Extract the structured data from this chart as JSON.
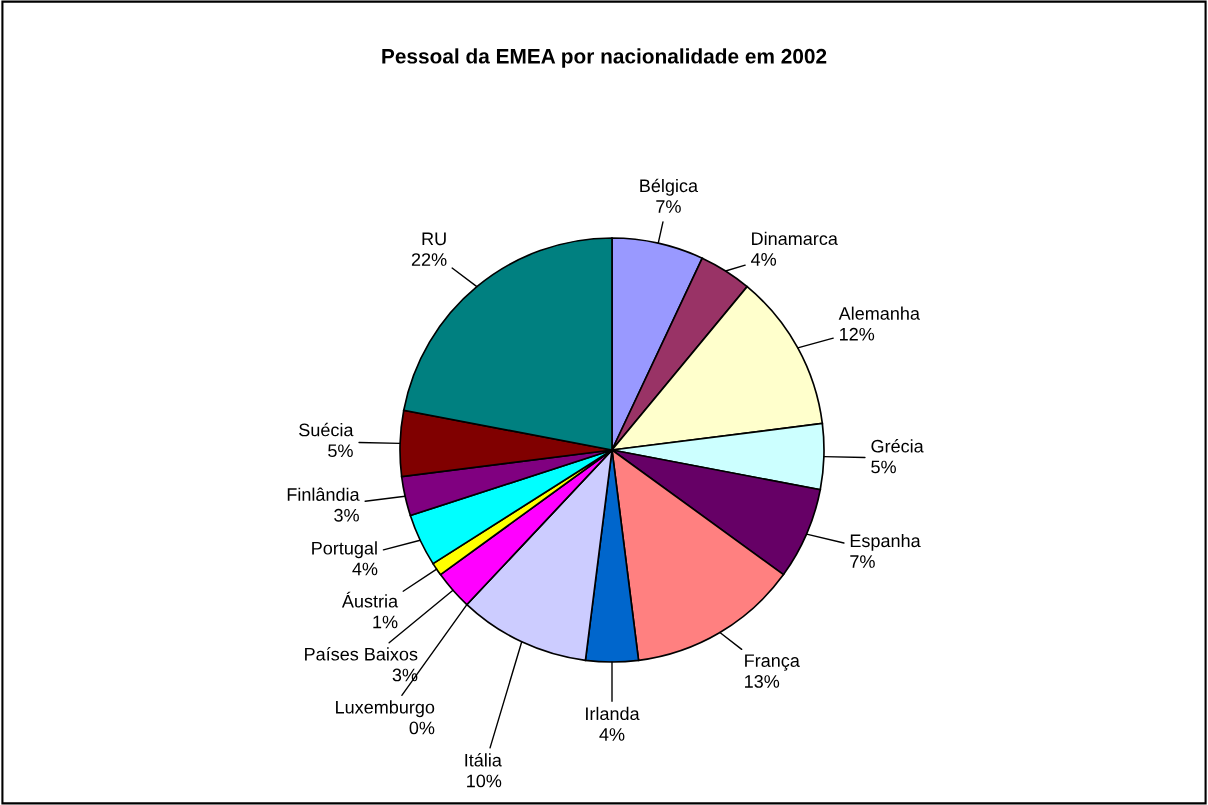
{
  "chart_data": {
    "type": "pie",
    "title": "Pessoal da EMEA por nacionalidade em 2002",
    "categories": [
      "Bélgica",
      "Dinamarca",
      "Alemanha",
      "Grécia",
      "Espanha",
      "França",
      "Irlanda",
      "Itália",
      "Luxemburgo",
      "Países Baixos",
      "Áustria",
      "Portugal",
      "Finlândia",
      "Suécia",
      "RU"
    ],
    "values": [
      7,
      4,
      12,
      5,
      7,
      13,
      4,
      10,
      0,
      3,
      1,
      4,
      3,
      5,
      22
    ],
    "colors": [
      "#9999ff",
      "#993366",
      "#ffffcc",
      "#ccffff",
      "#660066",
      "#ff8080",
      "#0066cc",
      "#ccccff",
      "#000080",
      "#ff00ff",
      "#ffff00",
      "#00ffff",
      "#800080",
      "#800000",
      "#008080"
    ],
    "value_labels": [
      "7%",
      "4%",
      "12%",
      "5%",
      "7%",
      "13%",
      "4%",
      "10%",
      "0%",
      "3%",
      "1%",
      "4%",
      "3%",
      "5%",
      "22%"
    ],
    "legend": false
  }
}
